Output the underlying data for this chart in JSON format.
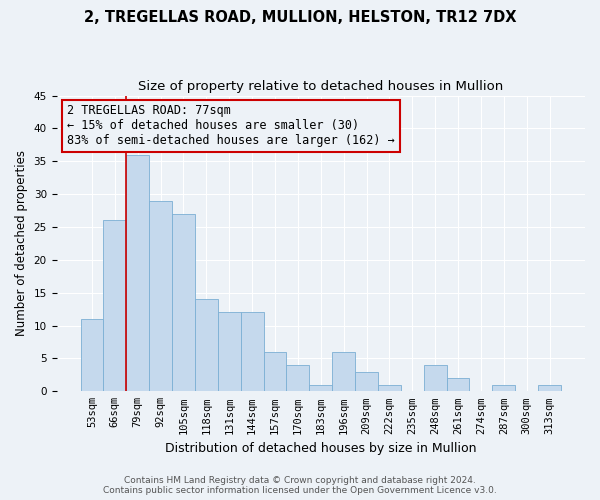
{
  "title": "2, TREGELLAS ROAD, MULLION, HELSTON, TR12 7DX",
  "subtitle": "Size of property relative to detached houses in Mullion",
  "xlabel": "Distribution of detached houses by size in Mullion",
  "ylabel": "Number of detached properties",
  "categories": [
    "53sqm",
    "66sqm",
    "79sqm",
    "92sqm",
    "105sqm",
    "118sqm",
    "131sqm",
    "144sqm",
    "157sqm",
    "170sqm",
    "183sqm",
    "196sqm",
    "209sqm",
    "222sqm",
    "235sqm",
    "248sqm",
    "261sqm",
    "274sqm",
    "287sqm",
    "300sqm",
    "313sqm"
  ],
  "values": [
    11,
    26,
    36,
    29,
    27,
    14,
    12,
    12,
    6,
    4,
    1,
    6,
    3,
    1,
    0,
    4,
    2,
    0,
    1,
    0,
    1
  ],
  "bar_color": "#c5d9ed",
  "bar_edge_color": "#7bafd4",
  "highlight_line_color": "#cc0000",
  "ylim": [
    0,
    45
  ],
  "yticks": [
    0,
    5,
    10,
    15,
    20,
    25,
    30,
    35,
    40,
    45
  ],
  "annotation_title": "2 TREGELLAS ROAD: 77sqm",
  "annotation_line1": "← 15% of detached houses are smaller (30)",
  "annotation_line2": "83% of semi-detached houses are larger (162) →",
  "annotation_box_edge": "#cc0000",
  "footer_line1": "Contains HM Land Registry data © Crown copyright and database right 2024.",
  "footer_line2": "Contains public sector information licensed under the Open Government Licence v3.0.",
  "background_color": "#edf2f7",
  "grid_color": "#ffffff",
  "title_fontsize": 10.5,
  "subtitle_fontsize": 9.5,
  "ylabel_fontsize": 8.5,
  "xlabel_fontsize": 9,
  "tick_fontsize": 7.5,
  "footer_fontsize": 6.5,
  "annot_fontsize": 8.5
}
